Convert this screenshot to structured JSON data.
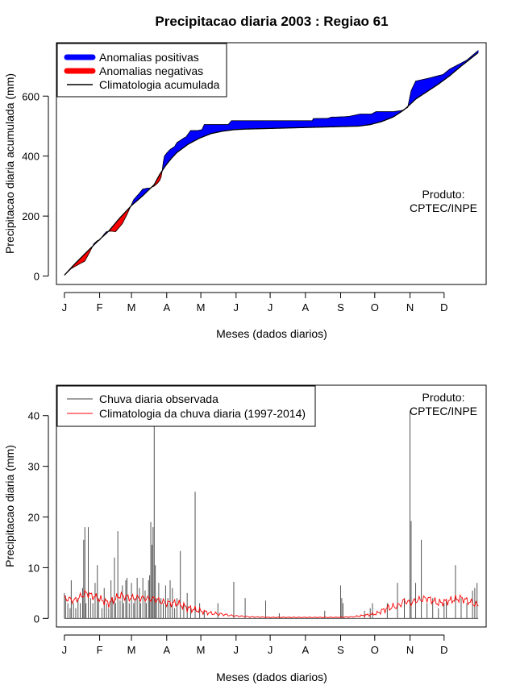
{
  "title": "Precipitacao diaria 2003 : Regiao 61",
  "charts": [
    {
      "type": "area",
      "legend": [
        "Anomalias positivas",
        "Anomalias negativas",
        "Climatologia acumulada"
      ],
      "product_line1": "Produto:",
      "product_line2": "CPTEC/INPE"
    },
    {
      "type": "bar",
      "legend": [
        "Chuva diaria observada",
        "Climatologia da chuva diaria (1997-2014)"
      ],
      "product_line1": "Produto:",
      "product_line2": "CPTEC/INPE"
    }
  ],
  "colors": {
    "positive": "#0000ff",
    "negative": "#ff0000",
    "climatology_cum": "#000000",
    "observed": "#404040",
    "climatology_daily": "#ff0000"
  },
  "chart_data": [
    {
      "type": "area",
      "title": "Precipitacao diaria 2003 : Regiao 61",
      "xlabel": "Meses (dados diarios)",
      "ylabel": "Precipitacao diaria acumulada (mm)",
      "xlim": [
        -6,
        372
      ],
      "ylim": [
        -28,
        778
      ],
      "xticks": [
        {
          "day": 1,
          "label": "J"
        },
        {
          "day": 32,
          "label": "F"
        },
        {
          "day": 60,
          "label": "M"
        },
        {
          "day": 91,
          "label": "A"
        },
        {
          "day": 121,
          "label": "M"
        },
        {
          "day": 152,
          "label": "J"
        },
        {
          "day": 182,
          "label": "J"
        },
        {
          "day": 213,
          "label": "A"
        },
        {
          "day": 244,
          "label": "S"
        },
        {
          "day": 274,
          "label": "O"
        },
        {
          "day": 305,
          "label": "N"
        },
        {
          "day": 335,
          "label": "D"
        }
      ],
      "yticks": [
        0,
        200,
        400,
        600
      ],
      "climatology_cumulative": {
        "day": [
          1,
          10,
          20,
          30,
          40,
          50,
          60,
          70,
          80,
          85,
          90,
          95,
          100,
          110,
          120,
          130,
          140,
          150,
          160,
          180,
          200,
          220,
          240,
          260,
          270,
          280,
          290,
          295,
          300,
          305,
          310,
          320,
          330,
          340,
          350,
          365
        ],
        "value": [
          3,
          40,
          78,
          115,
          150,
          195,
          235,
          268,
          305,
          340,
          368,
          392,
          412,
          440,
          460,
          475,
          483,
          488,
          490,
          492,
          494,
          496,
          498,
          500,
          505,
          515,
          530,
          542,
          555,
          572,
          590,
          615,
          640,
          668,
          700,
          745
        ]
      },
      "observed_cumulative": {
        "day": [
          1,
          7,
          14,
          19,
          23,
          27,
          30,
          32,
          36,
          38,
          42,
          46,
          52,
          56,
          60,
          62,
          66,
          70,
          74,
          76,
          80,
          83,
          85,
          86,
          87,
          88,
          89,
          91,
          94,
          98,
          100,
          104,
          106,
          108,
          112,
          118,
          122,
          124,
          145,
          148,
          160,
          180,
          200,
          219,
          220,
          233,
          236,
          240,
          246,
          251,
          261,
          271,
          275,
          290,
          298,
          302,
          303,
          306,
          310,
          322,
          334,
          340,
          345,
          355,
          365
        ],
        "value": [
          3,
          25,
          40,
          50,
          78,
          108,
          118,
          120,
          140,
          148,
          150,
          148,
          175,
          205,
          238,
          255,
          272,
          290,
          293,
          293,
          300,
          310,
          320,
          330,
          350,
          380,
          400,
          410,
          422,
          432,
          445,
          455,
          460,
          464,
          485,
          485,
          488,
          505,
          505,
          518,
          518,
          518,
          518,
          518,
          525,
          526,
          530,
          530,
          531,
          532,
          540,
          540,
          548,
          548,
          552,
          560,
          562,
          618,
          650,
          660,
          672,
          690,
          700,
          720,
          752
        ]
      }
    },
    {
      "type": "bar",
      "xlabel": "Meses (dados diarios)",
      "ylabel": "Precipitacao diaria (mm)",
      "xlim": [
        -6,
        372
      ],
      "ylim": [
        -1.7,
        46
      ],
      "xticks": [
        {
          "day": 1,
          "label": "J"
        },
        {
          "day": 32,
          "label": "F"
        },
        {
          "day": 60,
          "label": "M"
        },
        {
          "day": 91,
          "label": "A"
        },
        {
          "day": 121,
          "label": "M"
        },
        {
          "day": 152,
          "label": "J"
        },
        {
          "day": 182,
          "label": "J"
        },
        {
          "day": 213,
          "label": "A"
        },
        {
          "day": 244,
          "label": "S"
        },
        {
          "day": 274,
          "label": "O"
        },
        {
          "day": 305,
          "label": "N"
        },
        {
          "day": 335,
          "label": "D"
        }
      ],
      "yticks": [
        0,
        10,
        20,
        30,
        40
      ],
      "observed_daily": {
        "day": [
          1,
          2,
          4,
          6,
          7,
          9,
          11,
          13,
          15,
          17,
          18,
          19,
          20,
          22,
          24,
          26,
          28,
          30,
          31,
          34,
          36,
          38,
          40,
          42,
          43,
          45,
          46,
          48,
          50,
          52,
          53,
          55,
          56,
          58,
          60,
          62,
          63,
          65,
          67,
          68,
          70,
          72,
          73,
          75,
          76,
          77,
          78,
          79,
          80,
          81,
          82,
          84,
          86,
          88,
          90,
          92,
          94,
          96,
          98,
          100,
          103,
          106,
          109,
          112,
          116,
          120,
          124,
          136,
          150,
          160,
          178,
          190,
          230,
          244,
          245,
          246,
          265,
          270,
          272,
          285,
          294,
          300,
          305,
          306,
          310,
          315,
          320,
          325,
          330,
          335,
          337,
          345,
          350,
          355,
          360,
          362,
          364
        ],
        "value": [
          5,
          4.5,
          3,
          2,
          7.5,
          3,
          2,
          4,
          3,
          6,
          15.5,
          18,
          3,
          18,
          4,
          3,
          7,
          10.5,
          4,
          2,
          6,
          3,
          2,
          7.5,
          4,
          12,
          3,
          17.2,
          3.5,
          6.5,
          3,
          7.5,
          8,
          3,
          7,
          3,
          4,
          8,
          6,
          3,
          8,
          5.5,
          3,
          7.5,
          8.5,
          19,
          14.5,
          18,
          38,
          10.5,
          4,
          7,
          4,
          3,
          6.5,
          4,
          7.5,
          6,
          2,
          4,
          13.3,
          3,
          5,
          2,
          25,
          3,
          1.5,
          3,
          7.2,
          4,
          3.5,
          1,
          1.5,
          6.5,
          4,
          3,
          1.5,
          2,
          3,
          3,
          7,
          4,
          41,
          19.2,
          7,
          15.5,
          3,
          4,
          2,
          3,
          3.5,
          10.5,
          4,
          3,
          5.5,
          6,
          7
        ]
      },
      "climatology_daily": {
        "day": [
          1,
          10,
          20,
          30,
          40,
          50,
          60,
          70,
          80,
          90,
          100,
          110,
          120,
          130,
          140,
          150,
          165,
          180,
          200,
          220,
          240,
          255,
          265,
          275,
          285,
          295,
          300,
          305,
          310,
          320,
          330,
          340,
          350,
          358,
          365
        ],
        "value": [
          4,
          3.5,
          5,
          4,
          3,
          4.5,
          4,
          4,
          3.8,
          3,
          3,
          2,
          1.5,
          1,
          0.8,
          0.5,
          0.3,
          0.2,
          0.2,
          0.2,
          0.2,
          0.3,
          0.6,
          0.9,
          2,
          2.5,
          3.5,
          3,
          3.5,
          4,
          3,
          3.5,
          4,
          3.2,
          2.5
        ]
      }
    }
  ]
}
